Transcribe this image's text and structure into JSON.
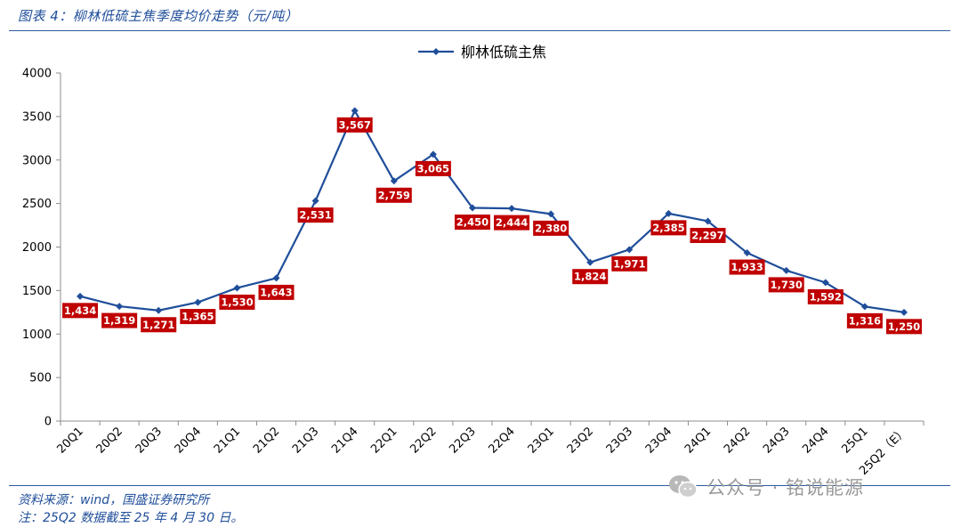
{
  "figure_title": "图表 4：柳林低硫主焦季度均价走势（元/吨）",
  "source_note": "资料来源：wind，国盛证券研究所",
  "footnote": "注：25Q2 数据截至 25 年 4 月 30 日。",
  "watermark": {
    "text": "公众号 · 铭说能源",
    "icon": "wechat-icon"
  },
  "colors": {
    "line": "#1F4E9A",
    "label_bg": "#C00000",
    "rule": "#2E5C9E"
  },
  "chart_data": {
    "type": "line",
    "title": "",
    "xlabel": "",
    "ylabel": "",
    "ylim": [
      0,
      4000
    ],
    "yticks": [
      0,
      500,
      1000,
      1500,
      2000,
      2500,
      3000,
      3500,
      4000
    ],
    "grid": false,
    "legend_position": "top-center",
    "categories": [
      "20Q1",
      "20Q2",
      "20Q3",
      "20Q4",
      "21Q1",
      "21Q2",
      "21Q3",
      "21Q4",
      "22Q1",
      "22Q2",
      "22Q3",
      "22Q4",
      "23Q1",
      "23Q2",
      "23Q3",
      "23Q4",
      "24Q1",
      "24Q2",
      "24Q3",
      "24Q4",
      "25Q1",
      "25Q2（E）"
    ],
    "series": [
      {
        "name": "柳林低硫主焦",
        "values": [
          1434,
          1319,
          1271,
          1365,
          1530,
          1643,
          2531,
          3567,
          2759,
          3065,
          2450,
          2444,
          2380,
          1824,
          1971,
          2385,
          2297,
          1933,
          1730,
          1592,
          1316,
          1250
        ],
        "labels": [
          "1,434",
          "1,319",
          "1,271",
          "1,365",
          "1,530",
          "1,643",
          "2,531",
          "3,567",
          "2,759",
          "3,065",
          "2,450",
          "2,444",
          "2,380",
          "1,824",
          "1,971",
          "2,385",
          "2,297",
          "1,933",
          "1,730",
          "1,592",
          "1,316",
          "1,250"
        ]
      }
    ]
  }
}
